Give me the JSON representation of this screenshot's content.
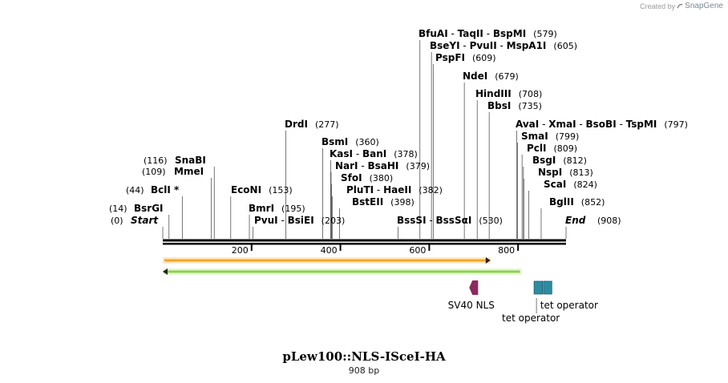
{
  "credit": {
    "prefix": "Created by",
    "brand": "SnapGene"
  },
  "plasmid": {
    "name": "pLew100::NLS-ISceI-HA",
    "length_label": "908 bp"
  },
  "ruler": {
    "start_bp": 0,
    "end_bp": 908,
    "ticks": [
      200,
      400,
      600,
      800
    ]
  },
  "ends": {
    "start": {
      "name": "Start",
      "pos": "(0)"
    },
    "end": {
      "name": "End",
      "pos": "(908)"
    }
  },
  "sites": [
    {
      "bp": 14,
      "names": [
        "BsrGI"
      ],
      "pos": "(14)"
    },
    {
      "bp": 44,
      "names": [
        "BclI *"
      ],
      "pos": "(44)"
    },
    {
      "bp": 109,
      "names": [
        "MmeI"
      ],
      "pos": "(109)"
    },
    {
      "bp": 116,
      "names": [
        "SnaBI"
      ],
      "pos": "(116)"
    },
    {
      "bp": 153,
      "names": [
        "EcoNI"
      ],
      "pos": "(153)"
    },
    {
      "bp": 195,
      "names": [
        "BmrI"
      ],
      "pos": "(195)"
    },
    {
      "bp": 203,
      "names": [
        "PvuI",
        "BsiEI"
      ],
      "pos": "(203)"
    },
    {
      "bp": 277,
      "names": [
        "DrdI"
      ],
      "pos": "(277)"
    },
    {
      "bp": 360,
      "names": [
        "BsmI"
      ],
      "pos": "(360)"
    },
    {
      "bp": 378,
      "names": [
        "KasI",
        "BanI"
      ],
      "pos": "(378)"
    },
    {
      "bp": 379,
      "names": [
        "NarI",
        "BsaHI"
      ],
      "pos": "(379)"
    },
    {
      "bp": 380,
      "names": [
        "SfoI"
      ],
      "pos": "(380)"
    },
    {
      "bp": 382,
      "names": [
        "PluTI",
        "HaeII"
      ],
      "pos": "(382)"
    },
    {
      "bp": 398,
      "names": [
        "BstEII"
      ],
      "pos": "(398)"
    },
    {
      "bp": 530,
      "names": [
        "BssSI",
        "BssSαI"
      ],
      "pos": "(530)"
    },
    {
      "bp": 579,
      "names": [
        "BfuAI",
        "TaqII",
        "BspMI"
      ],
      "pos": "(579)"
    },
    {
      "bp": 605,
      "names": [
        "BseYI",
        "PvuII",
        "MspA1I"
      ],
      "pos": "(605)"
    },
    {
      "bp": 609,
      "names": [
        "PspFI"
      ],
      "pos": "(609)"
    },
    {
      "bp": 679,
      "names": [
        "NdeI"
      ],
      "pos": "(679)"
    },
    {
      "bp": 708,
      "names": [
        "HindIII"
      ],
      "pos": "(708)"
    },
    {
      "bp": 735,
      "names": [
        "BbsI"
      ],
      "pos": "(735)"
    },
    {
      "bp": 797,
      "names": [
        "AvaI",
        "XmaI",
        "BsoBI",
        "TspMI"
      ],
      "pos": "(797)"
    },
    {
      "bp": 799,
      "names": [
        "SmaI"
      ],
      "pos": "(799)"
    },
    {
      "bp": 809,
      "names": [
        "PclI"
      ],
      "pos": "(809)"
    },
    {
      "bp": 812,
      "names": [
        "BsgI"
      ],
      "pos": "(812)"
    },
    {
      "bp": 813,
      "names": [
        "NspI"
      ],
      "pos": "(813)"
    },
    {
      "bp": 824,
      "names": [
        "ScaI"
      ],
      "pos": "(824)"
    },
    {
      "bp": 852,
      "names": [
        "BglII"
      ],
      "pos": "(852)"
    }
  ],
  "features": [
    {
      "name": "orf-forward",
      "direction": "forward",
      "start_bp": 0,
      "end_bp": 738,
      "color": "#f5a623"
    },
    {
      "name": "orf-reverse",
      "direction": "reverse",
      "start_bp": 0,
      "end_bp": 808,
      "color": "#8fd14f"
    },
    {
      "name": "SV40 NLS",
      "label": "SV40 NLS",
      "start_bp": 690,
      "end_bp": 710,
      "color": "#8b2a5e"
    },
    {
      "name": "tet operator 1",
      "label": "tet operator",
      "start_bp": 836,
      "end_bp": 855,
      "color": "#2e8ca0"
    },
    {
      "name": "tet operator 2",
      "label": "tet operator",
      "start_bp": 857,
      "end_bp": 876,
      "color": "#2e8ca0"
    }
  ],
  "colors": {
    "backbone": "#000000",
    "site_line": "#555555"
  }
}
